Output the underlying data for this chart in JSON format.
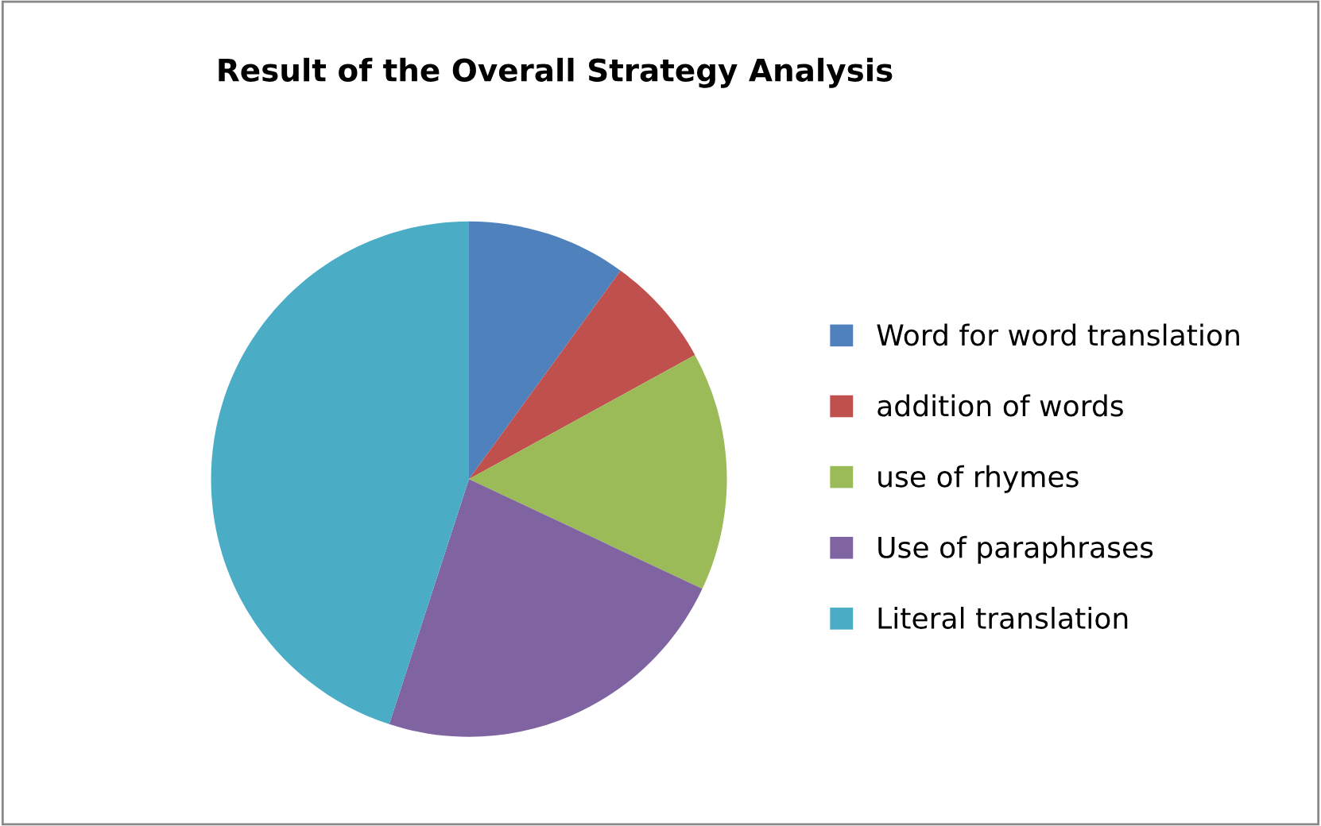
{
  "chart_data": {
    "type": "pie",
    "title": "Result of the Overall Strategy Analysis",
    "categories": [
      "Word for word translation",
      "addition of words",
      "use of rhymes",
      "Use of paraphrases",
      "Literal translation"
    ],
    "values": [
      10,
      7,
      15,
      23,
      45
    ],
    "colors": [
      "#4f81bd",
      "#c0504d",
      "#9bbb59",
      "#8064a2",
      "#4bacc6"
    ],
    "legend": "right"
  }
}
